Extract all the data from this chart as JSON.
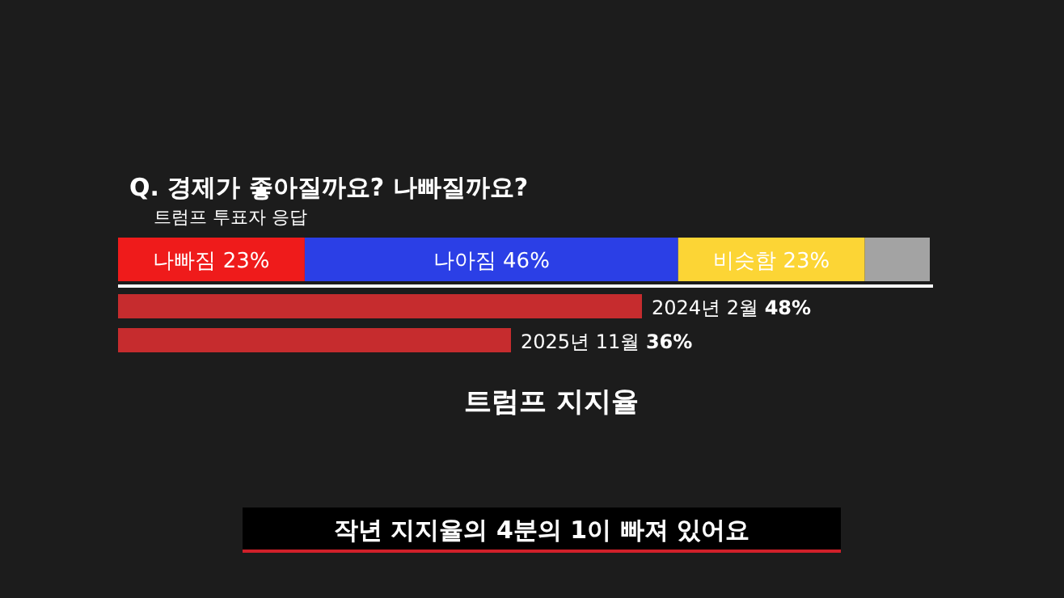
{
  "chart_data": [
    {
      "type": "bar",
      "orientation": "horizontal",
      "stacked": true,
      "title": "Q. 경제가 좋아질까요? 나빠질까요?",
      "subtitle": "트럼프 투표자 응답",
      "categories": [
        null
      ],
      "series": [
        {
          "color": "#ef1b1b",
          "values": [
            23
          ],
          "value_labels": [
            "나빠짐 23%"
          ]
        },
        {
          "color": "#2b3fe6",
          "values": [
            46
          ],
          "value_labels": [
            "나아짐 46%"
          ]
        },
        {
          "color": "#fcd535",
          "values": [
            23
          ],
          "value_labels": [
            "비슷함 23%"
          ]
        },
        {
          "color": "#a3a3a3",
          "values": [
            8
          ],
          "value_labels": [
            null
          ]
        }
      ]
    },
    {
      "type": "bar",
      "orientation": "horizontal",
      "title": "트럼프 지지율",
      "categories": [
        null,
        null
      ],
      "series": [
        {
          "color": "#c62c2e",
          "values": [
            48,
            36
          ],
          "value_labels": [
            "2024년 2월 48%",
            "2025년 11월 36%"
          ]
        }
      ],
      "annotations": [
        "작년 지지율의 4분의 1이 빠져 있어요"
      ]
    }
  ]
}
